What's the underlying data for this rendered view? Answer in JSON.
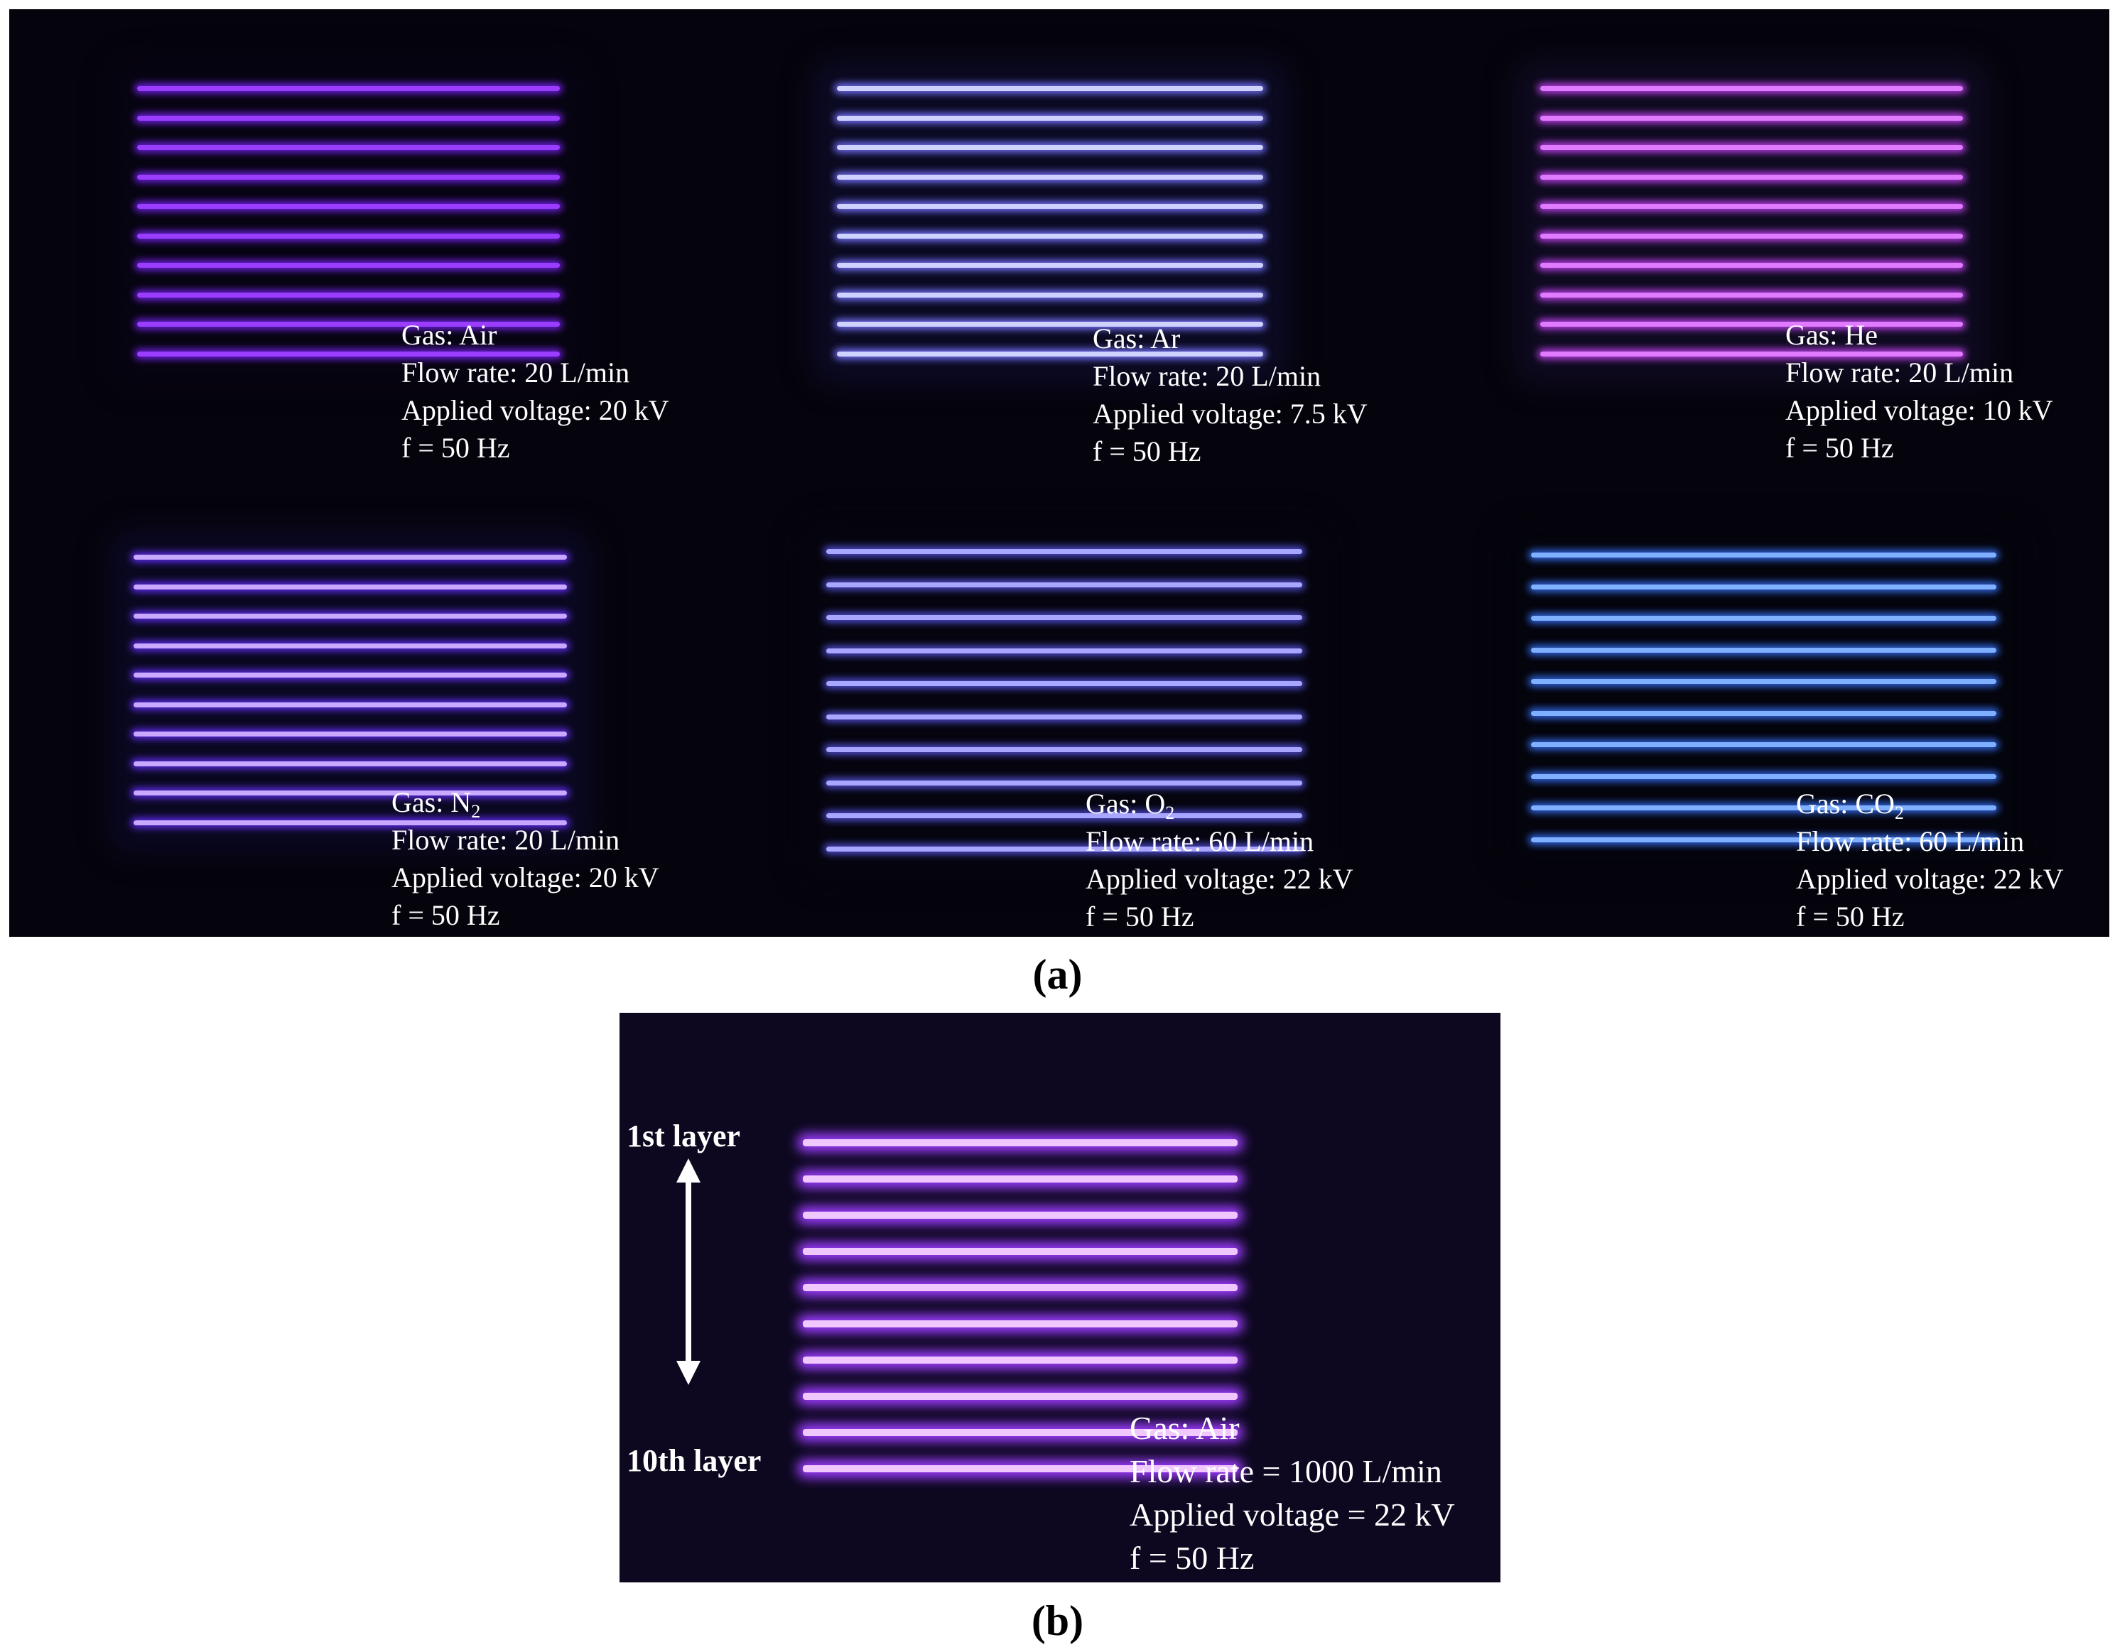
{
  "panel_a": {
    "caption": "(a)",
    "cells": [
      {
        "id": "air",
        "gas_prefix": "Gas: ",
        "gas_base": "Air",
        "gas_sub": "",
        "flow": "Flow rate: 20 L/min",
        "voltage": "Applied voltage: 20 kV",
        "freq": "f = 50 Hz",
        "tube_color": "#9b3dff",
        "glow_color": "#6a1fd6",
        "bg_color": "#070412"
      },
      {
        "id": "ar",
        "gas_prefix": "Gas: ",
        "gas_base": "Ar",
        "gas_sub": "",
        "flow": "Flow rate: 20 L/min",
        "voltage": "Applied voltage: 7.5 kV",
        "freq": "f = 50 Hz",
        "tube_color": "#cfd2ff",
        "glow_color": "#6f6cf0",
        "bg_color": "#0b0a22"
      },
      {
        "id": "he",
        "gas_prefix": "Gas: ",
        "gas_base": "He",
        "gas_sub": "",
        "flow": "Flow rate: 20 L/min",
        "voltage": "Applied voltage: 10 kV",
        "freq": "f = 50 Hz",
        "tube_color": "#e07bff",
        "glow_color": "#b13ddd",
        "bg_color": "#0e0a1f"
      },
      {
        "id": "n2",
        "gas_prefix": "Gas: ",
        "gas_base": "N",
        "gas_sub": "2",
        "flow": "Flow rate: 20 L/min",
        "voltage": "Applied voltage: 20 kV",
        "freq": "f = 50 Hz",
        "tube_color": "#c9a8ff",
        "glow_color": "#5a2ae0",
        "bg_color": "#0a0820"
      },
      {
        "id": "o2",
        "gas_prefix": "Gas: ",
        "gas_base": "O",
        "gas_sub": "2",
        "flow": "Flow rate: 60 L/min",
        "voltage": "Applied voltage: 22 kV",
        "freq": "f = 50 Hz",
        "tube_color": "#a9a6ff",
        "glow_color": "#4b49c6",
        "bg_color": "#05040f"
      },
      {
        "id": "co2",
        "gas_prefix": "Gas: ",
        "gas_base": "CO",
        "gas_sub": "2",
        "flow": "Flow rate: 60 L/min",
        "voltage": "Applied voltage: 22 kV",
        "freq": "f = 50 Hz",
        "tube_color": "#7fb0ff",
        "glow_color": "#2f62d8",
        "bg_color": "#04040d"
      }
    ]
  },
  "panel_b": {
    "caption": "(b)",
    "top_label": "1st layer",
    "bottom_label": "10th layer",
    "gas": "Gas: Air",
    "flow": "Flow rate = 1000 L/min",
    "voltage": "Applied voltage = 22 kV",
    "freq": "f = 50 Hz",
    "tube_color": "#f0c8ff",
    "glow_color": "#9d3cff",
    "bg_color": "#120a2e"
  }
}
